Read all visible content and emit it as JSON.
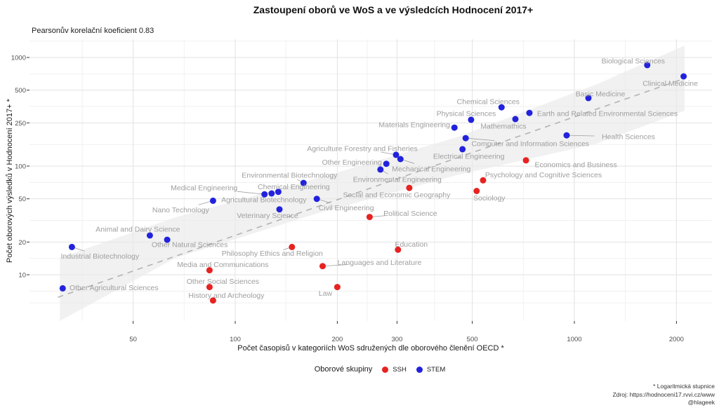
{
  "header": {
    "title": "Zastoupení oborů ve WoS a ve výsledcích Hodnocení 2017+",
    "subtitle": "Pearsonův korelační koeficient 0.83"
  },
  "axes": {
    "x_label": "Počet časopisů v kategoriích WoS sdružených dle oborového členění OECD *",
    "y_label": "Počet oborových výsledků v Hodnocení 2017+ *"
  },
  "legend": {
    "title": "Oborové skupiny",
    "items": [
      {
        "label": "SSH",
        "color": "#e62321"
      },
      {
        "label": "STEM",
        "color": "#2222dd"
      }
    ]
  },
  "footer": {
    "note": "* Logaritmická stupnice",
    "source": "Zdroj: https://hodnoceni17.rvvi.cz/www",
    "handle": "@hlageek"
  },
  "chart_data": {
    "type": "scatter",
    "title": "Zastoupení oborů ve WoS a ve výsledcích Hodnocení 2017+",
    "subtitle": "Pearsonův korelační koeficient 0.83",
    "correlation": 0.83,
    "xlabel": "Počet časopisů v kategoriích WoS sdružených dle oborového členění OECD *",
    "ylabel": "Počet oborových výsledků v Hodnocení 2017+ *",
    "x_scale": "log",
    "y_scale": "log",
    "grid": true,
    "legend_position": "bottom",
    "x_ticks": [
      50,
      100,
      200,
      300,
      500,
      1000,
      2000
    ],
    "y_ticks": [
      10,
      20,
      50,
      100,
      250,
      500,
      1000
    ],
    "x_minor": [
      35.4,
      70.7,
      141,
      245,
      387,
      707,
      1414
    ],
    "y_minor": [
      5.5,
      7.07,
      14.1,
      31.6,
      70.7,
      158,
      354,
      707,
      1414
    ],
    "x_range": [
      24.7,
      2546
    ],
    "y_range": [
      3.75,
      1346
    ],
    "trend": {
      "style": "dashed",
      "from": [
        30,
        6.2
      ],
      "to": [
        2115,
        642
      ]
    },
    "band": [
      [
        30.4,
        14.3
      ],
      [
        66.7,
        33.8
      ],
      [
        173,
        76.5
      ],
      [
        449,
        184
      ],
      [
        1165,
        568
      ],
      [
        2114,
        1287
      ],
      [
        2114,
        323
      ],
      [
        1165,
        161
      ],
      [
        449,
        82.4
      ],
      [
        173,
        36.4
      ],
      [
        66.7,
        14.3
      ],
      [
        30.4,
        3.75
      ]
    ],
    "series": [
      {
        "name": "SSH",
        "color": "#e62321",
        "points": [
          {
            "label": "Economics and Business",
            "x": 720,
            "y": 113,
            "dx": 71,
            "dy": 6
          },
          {
            "label": "Psychology and Cognitive Sciences",
            "x": 538,
            "y": 74,
            "dx": 86,
            "dy": -8
          },
          {
            "label": "Sociology",
            "x": 515,
            "y": 59,
            "dx": 18,
            "dy": 10
          },
          {
            "label": "Social and Economic Geography",
            "x": 326,
            "y": 63,
            "dx": -18,
            "dy": 10
          },
          {
            "label": "Political Science",
            "x": 249,
            "y": 34,
            "dx": 58,
            "dy": -5,
            "seg": true
          },
          {
            "label": "Education",
            "x": 302,
            "y": 17,
            "dx": 19,
            "dy": -8
          },
          {
            "label": "Philosophy Ethics and Religion",
            "x": 147,
            "y": 18,
            "dx": -28,
            "dy": 9,
            "seg": true
          },
          {
            "label": "Media and Communications",
            "x": 84,
            "y": 11,
            "dx": 19,
            "dy": -8
          },
          {
            "label": "Languages and Literature",
            "x": 181,
            "y": 12,
            "dx": 81,
            "dy": -5,
            "seg": true
          },
          {
            "label": "Other Social Sciences",
            "x": 84,
            "y": 7.7,
            "dx": 19,
            "dy": -8
          },
          {
            "label": "Law",
            "x": 200,
            "y": 7.7,
            "dx": -17,
            "dy": 9
          },
          {
            "label": "History and Archeology",
            "x": 86,
            "y": 5.8,
            "dx": 19,
            "dy": -7
          }
        ]
      },
      {
        "name": "STEM",
        "color": "#2222dd",
        "points": [
          {
            "label": "Biological Sciences",
            "x": 1640,
            "y": 850,
            "dx": -20,
            "dy": -6
          },
          {
            "label": "Clinical Medicine",
            "x": 2100,
            "y": 670,
            "dx": -19,
            "dy": 10
          },
          {
            "label": "Basic Medicine",
            "x": 1100,
            "y": 423,
            "dx": 17,
            "dy": -6
          },
          {
            "label": "Chemical Sciences",
            "x": 610,
            "y": 348,
            "dx": -19,
            "dy": -8
          },
          {
            "label": "Earth and Related Environmental Sciences",
            "x": 737,
            "y": 309,
            "dx": 111,
            "dy": 1
          },
          {
            "label": "Physical Sciences",
            "x": 496,
            "y": 267,
            "dx": -7,
            "dy": -9
          },
          {
            "label": "Mathemathics",
            "x": 670,
            "y": 271,
            "dx": -17,
            "dy": 10
          },
          {
            "label": "Materials Engineering",
            "x": 443,
            "y": 226,
            "dx": -57,
            "dy": -4
          },
          {
            "label": "Health Sciences",
            "x": 949,
            "y": 192,
            "dx": 88,
            "dy": 2,
            "seg": true
          },
          {
            "label": "Computer and Information Sciences",
            "x": 478,
            "y": 181,
            "dx": 92,
            "dy": 8,
            "seg": true
          },
          {
            "label": "Electrical Engineering",
            "x": 468,
            "y": 143,
            "dx": 9,
            "dy": 10
          },
          {
            "label": "Agriculture Forestry and Fisheries",
            "x": 298,
            "y": 127,
            "dx": -48,
            "dy": -9,
            "seg": true
          },
          {
            "label": "Other Engineering",
            "x": 279,
            "y": 105,
            "dx": -49,
            "dy": -2
          },
          {
            "label": "Mechanical Engineering",
            "x": 307,
            "y": 116,
            "dx": 44,
            "dy": 14,
            "seg": true
          },
          {
            "label": "Environmental Engineering",
            "x": 268,
            "y": 93,
            "dx": 24,
            "dy": 14,
            "seg": true
          },
          {
            "label": "Environmental Biotechnology",
            "x": 159,
            "y": 70,
            "dx": -20,
            "dy": -11,
            "seg": true
          },
          {
            "label": "Medical Engineering",
            "x": 122,
            "y": 55,
            "dx": -86,
            "dy": -9,
            "seg": true
          },
          {
            "label": "Chemical Engineering",
            "x": 134,
            "y": 58,
            "dx": 22,
            "dy": -7
          },
          {
            "label": "Agricultural Biotechnology",
            "x": 128,
            "y": 56,
            "dx": -11,
            "dy": 9
          },
          {
            "label": "Nano Technology",
            "x": 86,
            "y": 48,
            "dx": -46,
            "dy": 13,
            "seg": true
          },
          {
            "label": "Civil Engineering",
            "x": 174,
            "y": 50,
            "dx": 42,
            "dy": 13,
            "seg": true
          },
          {
            "label": "Veterinary Science",
            "x": 135,
            "y": 40,
            "dx": -17,
            "dy": 9
          },
          {
            "label": "Animal and Dairy Science",
            "x": 56,
            "y": 23,
            "dx": -17,
            "dy": -9
          },
          {
            "label": "Other Natural Sciences",
            "x": 63,
            "y": 21,
            "dx": 32,
            "dy": 7
          },
          {
            "label": "Industrial Biotechnology",
            "x": 33,
            "y": 18,
            "dx": 40,
            "dy": 13,
            "seg": true
          },
          {
            "label": "Other Agricultural Sciences",
            "x": 31,
            "y": 7.5,
            "dx": 73,
            "dy": -1
          }
        ]
      }
    ]
  }
}
